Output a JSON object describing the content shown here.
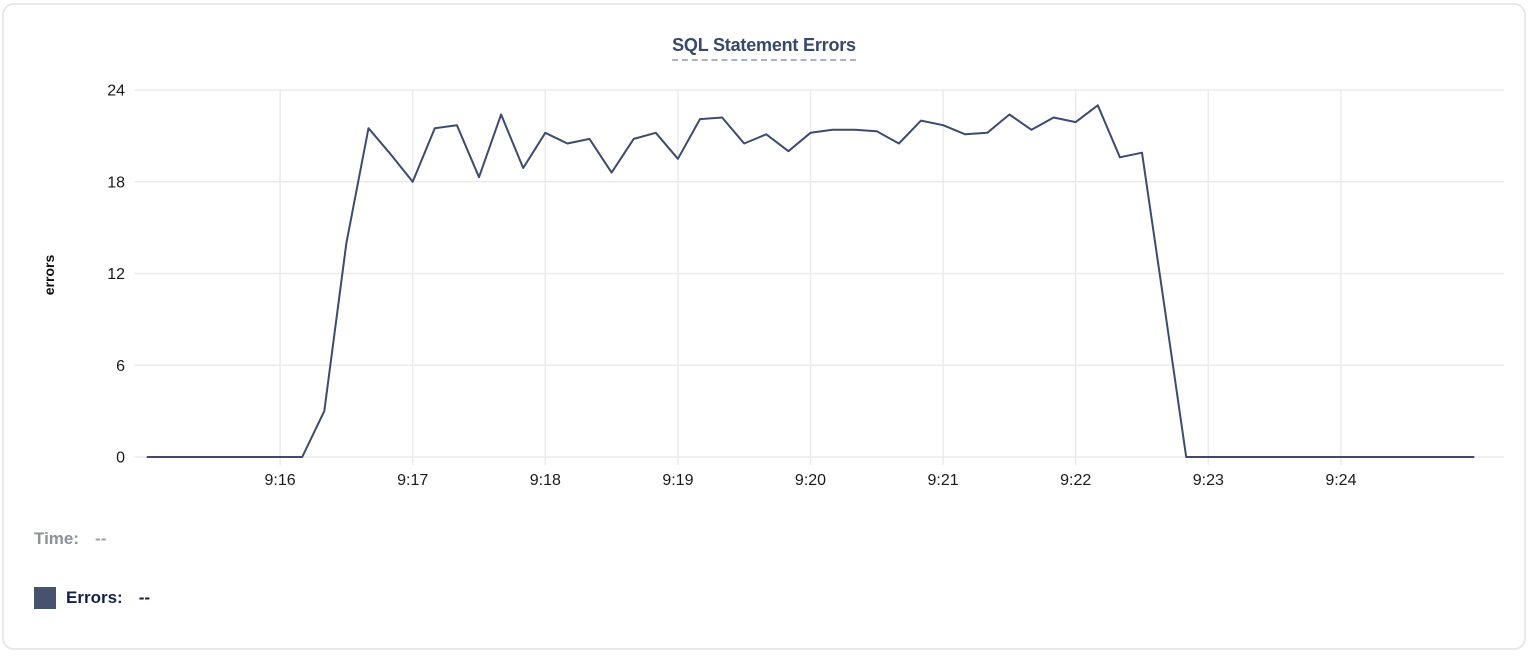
{
  "card": {
    "title": "SQL Statement Errors"
  },
  "legend": {
    "time_label": "Time:",
    "time_value": "--",
    "errors_label": "Errors:",
    "errors_value": "--"
  },
  "colors": {
    "line": "#3c4b6e",
    "title": "#36486b",
    "title_underline": "#a9b2c6",
    "card_border": "#e7e8ec",
    "grid": "#ebebee",
    "tick_text": "#1a1a1c",
    "axis_label": "#0d0d0e",
    "legend_time": "#8d9199",
    "legend_time_value": "#9b9fa7",
    "legend_errors": "#15214d",
    "swatch": "#47536e"
  },
  "chart_data": {
    "type": "line",
    "title": "SQL Statement Errors",
    "xlabel": "",
    "ylabel": "errors",
    "ylim": [
      0,
      24
    ],
    "y_ticks": [
      0,
      6,
      12,
      18,
      24
    ],
    "x_tick_labels": [
      "9:16",
      "9:17",
      "9:18",
      "9:19",
      "9:20",
      "9:21",
      "9:22",
      "9:23",
      "9:24"
    ],
    "x_range": [
      "9:15:00",
      "9:25:00"
    ],
    "start_time": "9:15:00",
    "interval_seconds": 10,
    "grid": true,
    "legend_position": "bottom-left",
    "series": [
      {
        "name": "Errors",
        "values": [
          0,
          0,
          0,
          0,
          0,
          0,
          0,
          0,
          3,
          14,
          21.5,
          19.8,
          18,
          21.5,
          21.7,
          18.3,
          22.4,
          18.9,
          21.2,
          20.5,
          20.8,
          18.6,
          20.8,
          21.2,
          19.5,
          22.1,
          22.2,
          20.5,
          21.1,
          20,
          21.2,
          21.4,
          21.4,
          21.3,
          20.5,
          22,
          21.7,
          21.1,
          21.2,
          22.4,
          21.4,
          22.2,
          21.9,
          23,
          19.6,
          19.9,
          10,
          0,
          0,
          0,
          0,
          0,
          0,
          0,
          0,
          0,
          0,
          0,
          0,
          0,
          0
        ]
      }
    ]
  }
}
